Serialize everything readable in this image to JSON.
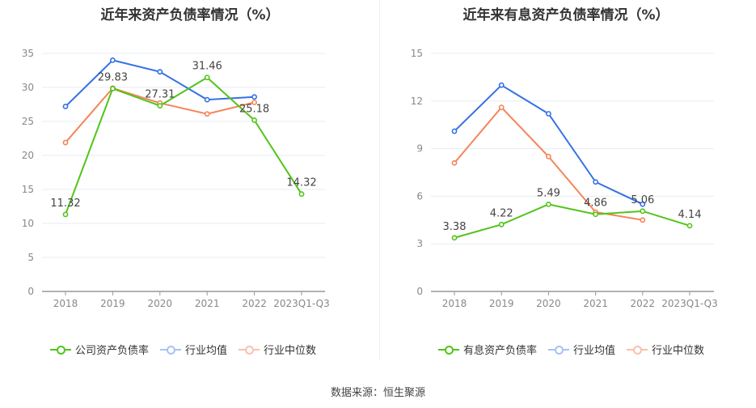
{
  "chart_data": [
    {
      "type": "line",
      "title": "近年来资产负债率情况（%）",
      "categories": [
        "2018",
        "2019",
        "2020",
        "2021",
        "2022",
        "2023Q1-Q3"
      ],
      "ylim": [
        0,
        35
      ],
      "yticks": [
        0,
        5,
        10,
        15,
        20,
        25,
        30,
        35
      ],
      "grid": true,
      "legend_position": "bottom",
      "series": [
        {
          "name": "公司资产负债率",
          "color": "#52c41a",
          "values": [
            11.32,
            29.83,
            27.31,
            31.46,
            25.18,
            14.32
          ],
          "labels": [
            "11.32",
            "29.83",
            "27.31",
            "31.46",
            "25.18",
            "14.32"
          ]
        },
        {
          "name": "行业均值",
          "color": "#3471e6",
          "values": [
            27.2,
            34.0,
            32.3,
            28.2,
            28.6,
            null
          ]
        },
        {
          "name": "行业中位数",
          "color": "#f5845a",
          "values": [
            21.9,
            29.9,
            27.7,
            26.1,
            27.8,
            null
          ]
        }
      ]
    },
    {
      "type": "line",
      "title": "近年来有息资产负债率情况（%）",
      "categories": [
        "2018",
        "2019",
        "2020",
        "2021",
        "2022",
        "2023Q1-Q3"
      ],
      "ylim": [
        0,
        15
      ],
      "yticks": [
        0,
        3,
        6,
        9,
        12,
        15
      ],
      "grid": true,
      "legend_position": "bottom",
      "series": [
        {
          "name": "有息资产负债率",
          "color": "#52c41a",
          "values": [
            3.38,
            4.22,
            5.49,
            4.86,
            5.06,
            4.14
          ],
          "labels": [
            "3.38",
            "4.22",
            "5.49",
            "4.86",
            "5.06",
            "4.14"
          ]
        },
        {
          "name": "行业均值",
          "color": "#3471e6",
          "values": [
            10.1,
            13.0,
            11.2,
            6.9,
            5.5,
            null
          ]
        },
        {
          "name": "行业中位数",
          "color": "#f5845a",
          "values": [
            8.1,
            11.6,
            8.5,
            5.0,
            4.5,
            null
          ]
        }
      ]
    }
  ],
  "source": "数据来源：恒生聚源"
}
